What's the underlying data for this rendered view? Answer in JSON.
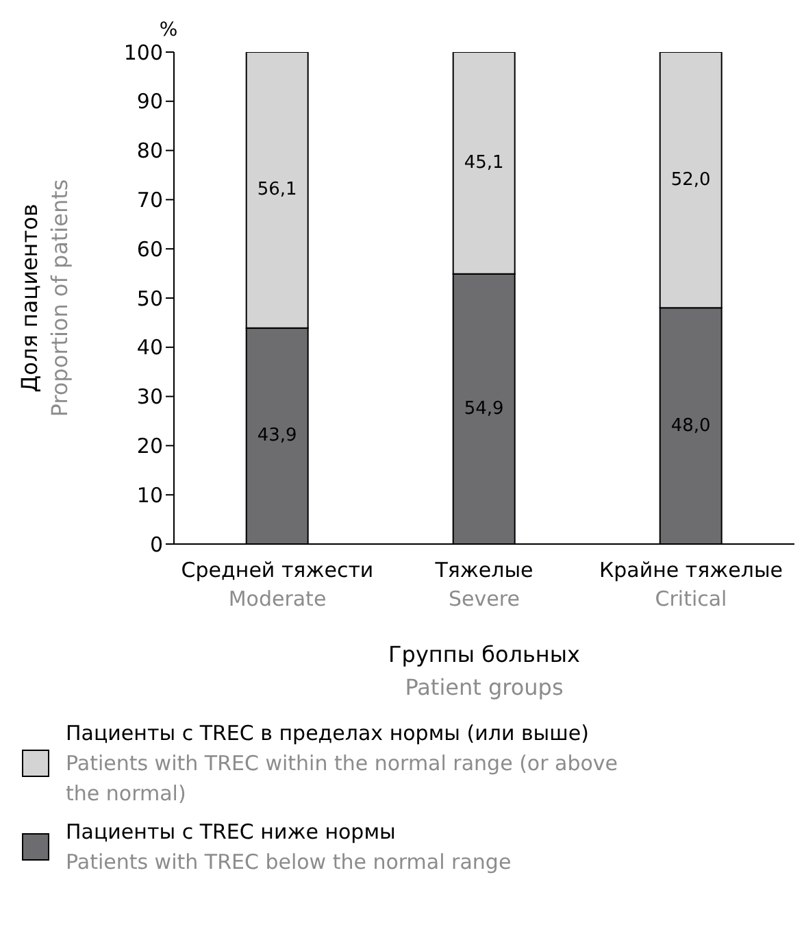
{
  "chart_data": {
    "type": "bar",
    "stacked": true,
    "categories": [
      "Средней тяжести\nModerate",
      "Тяжелые\nSevere",
      "Крайне тяжелые\nCritical"
    ],
    "xlabel": "Группы больных\nPatient groups",
    "ylabel": "Доля пациентов\nProportion of patients",
    "annotations": [
      "%"
    ],
    "ylim": [
      0,
      100
    ],
    "yticks": [
      0,
      10,
      20,
      30,
      40,
      50,
      60,
      70,
      80,
      90,
      100
    ],
    "series": [
      {
        "name": "Пациенты с TREC ниже нормы\nPatients with TREC below the normal range",
        "color": "#6d6d70",
        "values": [
          43.9,
          54.9,
          48.0
        ],
        "value_labels": [
          "43,9",
          "54,9",
          "48,0"
        ]
      },
      {
        "name": "Пациенты с TREC в пределах нормы (или выше)\nPatients with TREC within the normal range (or above the normal)",
        "color": "#d4d4d4",
        "values": [
          56.1,
          45.1,
          52.0
        ],
        "value_labels": [
          "56,1",
          "45,1",
          "52,0"
        ]
      }
    ],
    "grid": false,
    "legend": "bottom"
  }
}
